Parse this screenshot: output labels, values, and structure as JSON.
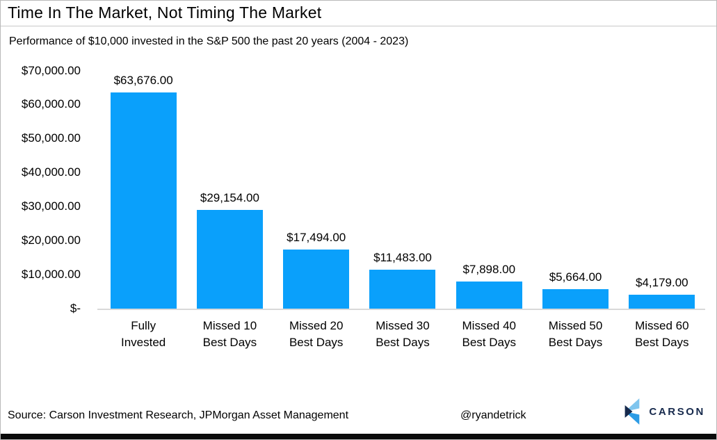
{
  "header": {
    "title": "Time In The Market, Not Timing The Market",
    "subtitle": "Performance of $10,000 invested in the S&P 500 the past 20 years (2004 - 2023)"
  },
  "chart_data": {
    "type": "bar",
    "title": "Time In The Market, Not Timing The Market",
    "subtitle": "Performance of $10,000 invested in the S&P 500 the past 20 years (2004 - 2023)",
    "categories": [
      "Fully Invested",
      "Missed 10 Best Days",
      "Missed 20 Best Days",
      "Missed 30 Best Days",
      "Missed 40 Best Days",
      "Missed 50 Best Days",
      "Missed 60 Best Days"
    ],
    "category_lines": [
      [
        "Fully",
        "Invested"
      ],
      [
        "Missed 10",
        "Best Days"
      ],
      [
        "Missed 20",
        "Best Days"
      ],
      [
        "Missed 30",
        "Best Days"
      ],
      [
        "Missed 40",
        "Best Days"
      ],
      [
        "Missed 50",
        "Best Days"
      ],
      [
        "Missed 60",
        "Best Days"
      ]
    ],
    "values": [
      63676,
      29154,
      17494,
      11483,
      7898,
      5664,
      4179
    ],
    "data_labels": [
      "$63,676.00",
      "$29,154.00",
      "$17,494.00",
      "$11,483.00",
      "$7,898.00",
      "$5,664.00",
      "$4,179.00"
    ],
    "y_ticks": [
      {
        "value": 70000,
        "label": "$70,000.00"
      },
      {
        "value": 60000,
        "label": "$60,000.00"
      },
      {
        "value": 50000,
        "label": "$50,000.00"
      },
      {
        "value": 40000,
        "label": "$40,000.00"
      },
      {
        "value": 30000,
        "label": "$30,000.00"
      },
      {
        "value": 20000,
        "label": "$20,000.00"
      },
      {
        "value": 10000,
        "label": "$10,000.00"
      },
      {
        "value": 0,
        "label": "$-"
      }
    ],
    "ylim": [
      0,
      70000
    ],
    "grid": false,
    "legend": false,
    "xlabel": "",
    "ylabel": ""
  },
  "footer": {
    "source": "Source: Carson Investment Research, JPMorgan Asset Management",
    "handle": "@ryandetrick",
    "logo_text": "CARSON"
  },
  "icons": {
    "logo_mark": "carson-chevron-icon"
  },
  "colors": {
    "bar": "#0aa0fb",
    "axis_line": "#d9d9d9",
    "logo_navy": "#16294c",
    "logo_light": "#7fc5ee",
    "logo_mid": "#2d9ce5",
    "bottom_strip": "#0a0a0a"
  }
}
